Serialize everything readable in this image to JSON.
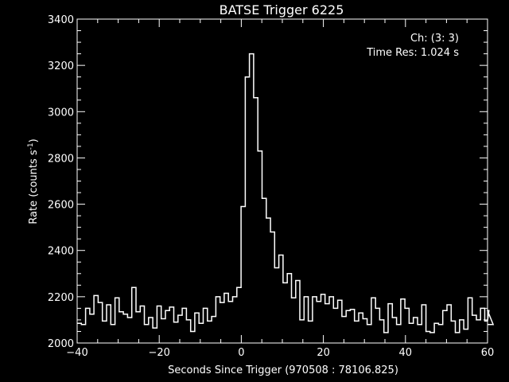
{
  "chart_data": {
    "type": "line",
    "style": "histogram-step",
    "title": "BATSE Trigger 6225",
    "xlabel": "Seconds Since Trigger (970508 : 78106.825)",
    "ylabel": "Rate (counts s",
    "ylabel_exponent": "-1",
    "ylabel_suffix": ")",
    "xlim": [
      -40,
      60
    ],
    "ylim": [
      2000,
      3400
    ],
    "x_ticks": [
      -40,
      -20,
      0,
      20,
      40,
      60
    ],
    "x_tick_labels": [
      "−40",
      "−20",
      "0",
      "20",
      "40",
      "60"
    ],
    "y_ticks": [
      2000,
      2200,
      2400,
      2600,
      2800,
      3000,
      3200,
      3400
    ],
    "annotations": [
      "Ch: (3: 3)",
      "Time Res: 1.024 s"
    ],
    "grid": false,
    "colors": {
      "background": "#000000",
      "foreground": "#ffffff"
    },
    "bin_width": 1.024,
    "x_start": -40.0,
    "values": [
      2085,
      2080,
      2150,
      2125,
      2205,
      2175,
      2095,
      2165,
      2080,
      2195,
      2135,
      2125,
      2110,
      2240,
      2135,
      2160,
      2080,
      2110,
      2065,
      2160,
      2105,
      2140,
      2155,
      2090,
      2120,
      2150,
      2100,
      2050,
      2130,
      2085,
      2150,
      2095,
      2115,
      2200,
      2175,
      2215,
      2180,
      2200,
      2240,
      2590,
      3150,
      3250,
      3060,
      2830,
      2625,
      2540,
      2480,
      2325,
      2380,
      2260,
      2300,
      2195,
      2270,
      2100,
      2200,
      2095,
      2200,
      2180,
      2210,
      2170,
      2200,
      2150,
      2185,
      2115,
      2140,
      2145,
      2095,
      2130,
      2105,
      2080,
      2195,
      2150,
      2100,
      2045,
      2170,
      2110,
      2080,
      2190,
      2150,
      2085,
      2110,
      2080,
      2165,
      2050,
      2045,
      2085,
      2080,
      2140,
      2165,
      2095,
      2045,
      2100,
      2060,
      2195,
      2120,
      2100,
      2150,
      2095,
      2140,
      2080
    ]
  }
}
